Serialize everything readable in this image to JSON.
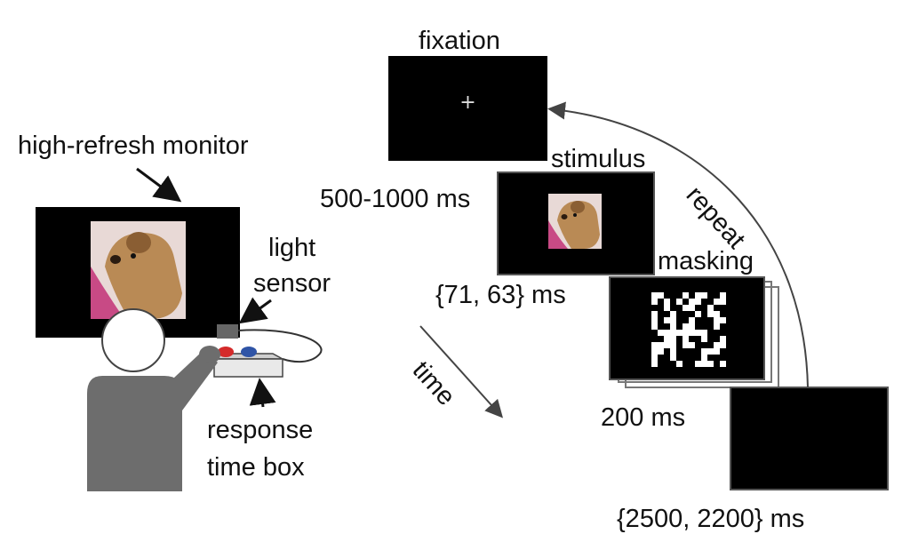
{
  "setup": {
    "monitor_label": "high-refresh monitor",
    "light_sensor_label_line1": "light",
    "light_sensor_label_line2": "sensor",
    "response_box_label_line1": "response",
    "response_box_label_line2": "time box"
  },
  "sequence": {
    "fixation_label": "fixation",
    "fixation_symbol": "+",
    "fixation_duration": "500-1000 ms",
    "stimulus_label": "stimulus",
    "stimulus_duration": "{71, 63} ms",
    "masking_label": "masking",
    "masking_duration": "200 ms",
    "blank_duration": "{2500, 2200} ms",
    "repeat_label": "repeat",
    "time_label": "time"
  },
  "colors": {
    "screen": "#000000",
    "person": "#6d6d6d",
    "button_left": "#d42a2a",
    "button_right": "#2f54a6",
    "sleeve": "#c84a85",
    "dog_fur": "#b98a55",
    "background_photo": "#e8d9d6"
  }
}
